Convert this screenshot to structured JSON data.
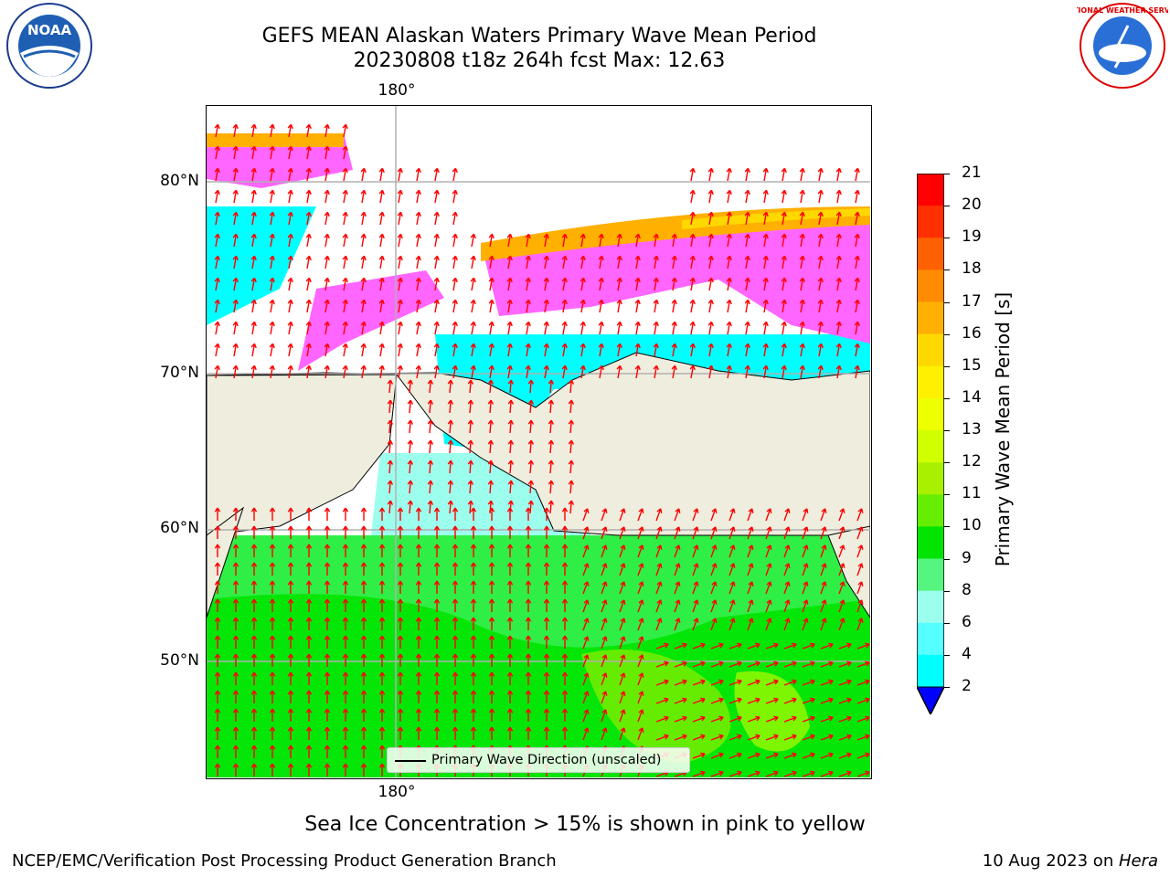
{
  "header": {
    "title_line1": "GEFS MEAN Alaskan Waters Primary Wave Mean Period",
    "title_line2": "20230808 t18z 264h fcst   Max: 12.63"
  },
  "logos": {
    "noaa_text": "NOAA",
    "nws_text": "NATIONAL WEATHER SERVICE"
  },
  "map": {
    "lon_label_top": "180°",
    "lon_label_bottom": "180°",
    "lat_labels": [
      "80°N",
      "70°N",
      "60°N",
      "50°N"
    ],
    "legend_text": "Primary Wave Direction (unscaled)",
    "land_color": "#efedde",
    "arrow_color": "#ff0000"
  },
  "colorbar": {
    "label": "Primary Wave Mean Period [s]",
    "ticks": [
      "21",
      "20",
      "19",
      "18",
      "17",
      "16",
      "15",
      "14",
      "13",
      "12",
      "11",
      "10",
      "9",
      "8",
      "6",
      "4",
      "2"
    ],
    "colors": [
      "#ff0000",
      "#ff3000",
      "#ff6000",
      "#ff8c00",
      "#ffb000",
      "#ffd800",
      "#fff000",
      "#eeff00",
      "#d0ff00",
      "#a8f000",
      "#66ee00",
      "#00e400",
      "#55f57f",
      "#9cffee",
      "#55ffff",
      "#00ffff",
      "#0080ff"
    ],
    "extend_color": "#0000ff"
  },
  "notes": {
    "sea_ice": "Sea Ice Concentration > 15% is shown in pink to yellow"
  },
  "footer": {
    "left": "NCEP/EMC/Verification Post Processing Product Generation Branch",
    "right_prefix": "10 Aug 2023 on ",
    "right_host": "Hera"
  }
}
